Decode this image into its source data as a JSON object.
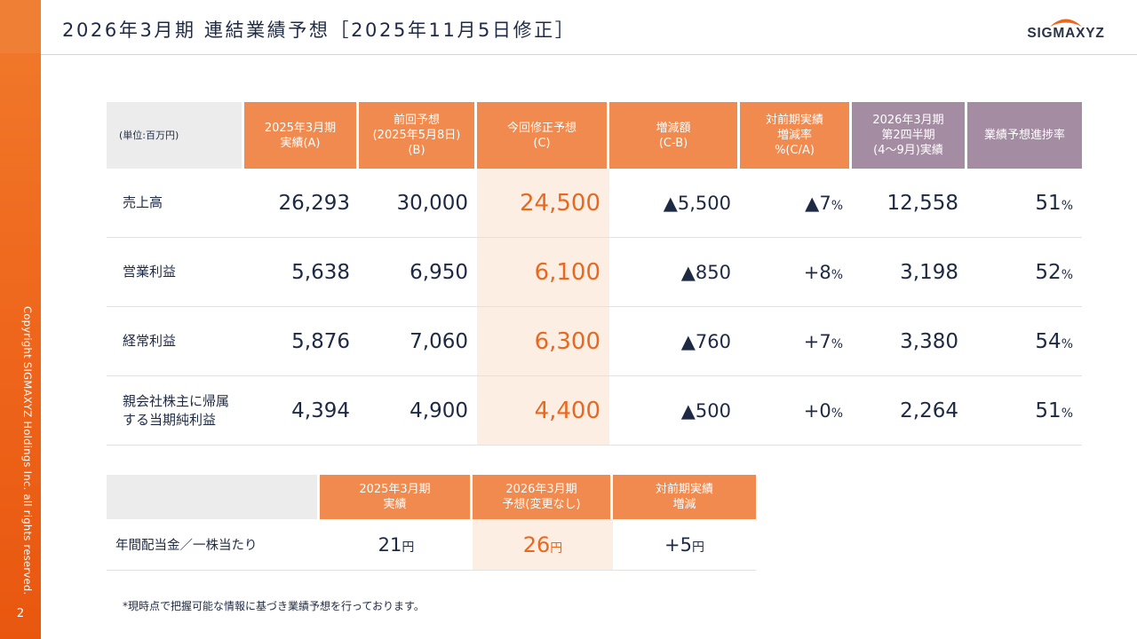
{
  "title": "2026年3月期 連結業績予想［2025年11月5日修正］",
  "logo": "SIGMAXYZ",
  "copyright": "Copyright SIGMAXYZ Holdings Inc. all rights reserved.",
  "page_number": "2",
  "colors": {
    "orange_header": "#f08a4e",
    "purple_header": "#a48ca3",
    "highlight": "#fdeee3",
    "accent": "#e9681f",
    "sidebar": "#ef6a1f"
  },
  "forecast_table": {
    "unit": "(単位:百万円)",
    "headers": [
      {
        "line1": "2025年3月期",
        "line2": "実績(A)",
        "line3": ""
      },
      {
        "line1": "前回予想",
        "line2": "(2025年5月8日)",
        "line3": "(B)"
      },
      {
        "line1": "今回修正予想",
        "line2": "(C)",
        "line3": ""
      },
      {
        "line1": "増減額",
        "line2": "(C-B)",
        "line3": ""
      },
      {
        "line1": "対前期実績",
        "line2": "増減率",
        "line3": "%(C/A)"
      },
      {
        "line1": "2026年3月期",
        "line2": "第2四半期",
        "line3": "(4〜9月)実績"
      },
      {
        "line1": "業績予想進捗率",
        "line2": "",
        "line3": ""
      }
    ],
    "rows": [
      {
        "label1": "売上高",
        "label2": "",
        "actual": "26,293",
        "prev": "30,000",
        "revised": "24,500",
        "diff": "▲5,500",
        "rate": "▲7",
        "q2": "12,558",
        "progress": "51"
      },
      {
        "label1": "営業利益",
        "label2": "",
        "actual": "5,638",
        "prev": "6,950",
        "revised": "6,100",
        "diff": "▲850",
        "rate": "+8",
        "q2": "3,198",
        "progress": "52"
      },
      {
        "label1": "経常利益",
        "label2": "",
        "actual": "5,876",
        "prev": "7,060",
        "revised": "6,300",
        "diff": "▲760",
        "rate": "+7",
        "q2": "3,380",
        "progress": "54"
      },
      {
        "label1": "親会社株主に帰属",
        "label2": "する当期純利益",
        "actual": "4,394",
        "prev": "4,900",
        "revised": "4,400",
        "diff": "▲500",
        "rate": "+0",
        "q2": "2,264",
        "progress": "51"
      }
    ],
    "pct_sign": "%"
  },
  "dividend_table": {
    "headers": [
      {
        "line1": "2025年3月期",
        "line2": "実績"
      },
      {
        "line1": "2026年3月期",
        "line2": "予想(変更なし)"
      },
      {
        "line1": "対前期実績",
        "line2": "増減"
      }
    ],
    "row": {
      "label": "年間配当金／一株当たり",
      "actual": "21",
      "forecast": "26",
      "diff": "+5"
    },
    "unit": "円"
  },
  "note": "*現時点で把握可能な情報に基づき業績予想を行っております。"
}
